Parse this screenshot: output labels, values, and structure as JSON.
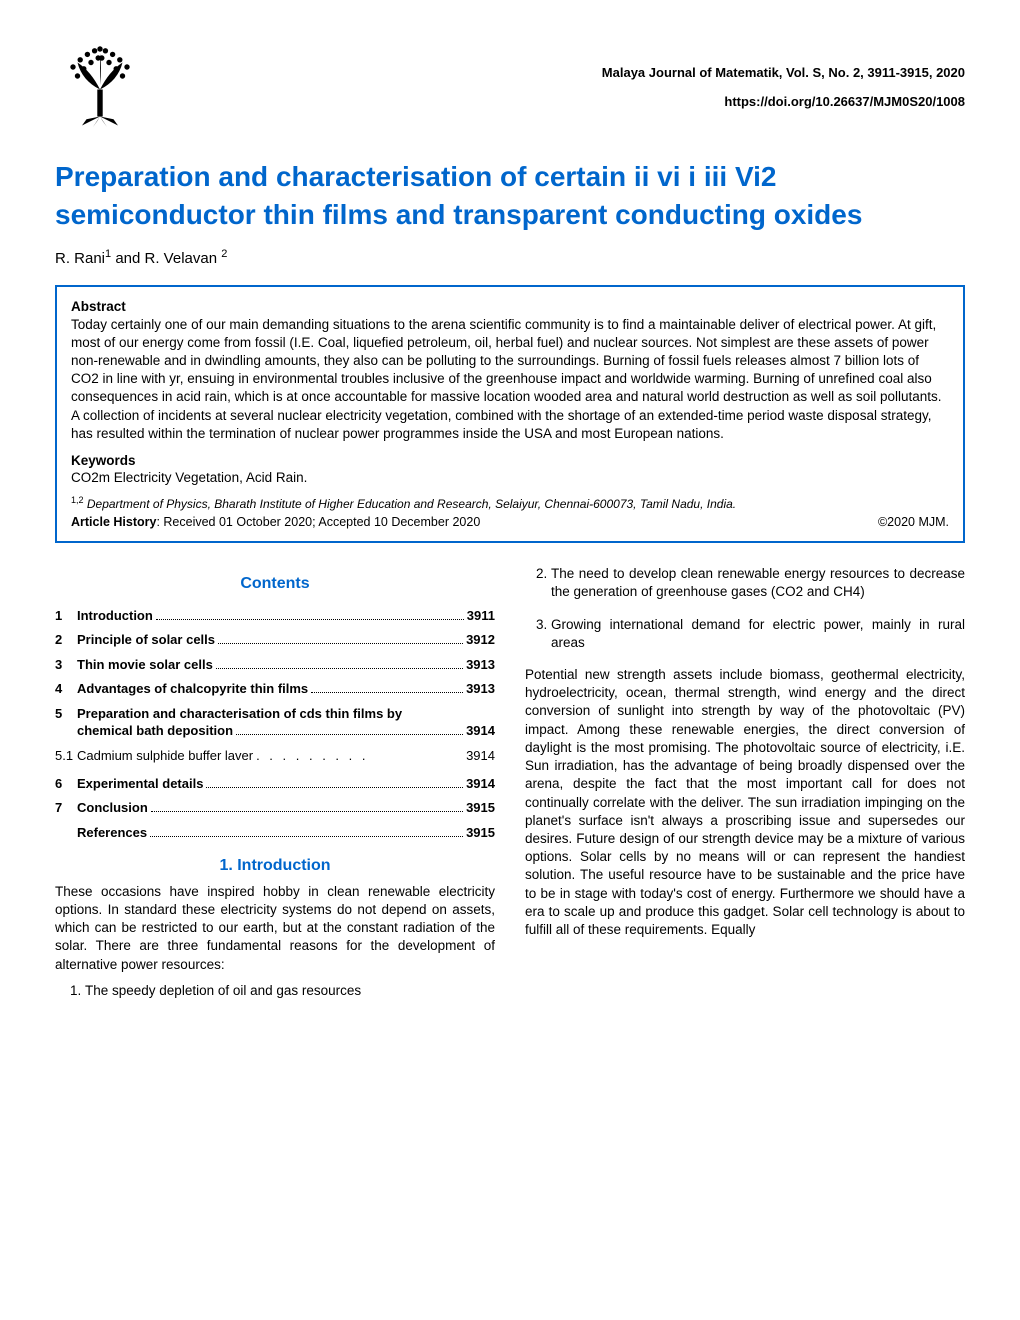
{
  "header": {
    "journal_line": "Malaya Journal of Matematik, Vol. S, No. 2, 3911-3915, 2020",
    "doi": "https://doi.org/10.26637/MJM0S20/1008"
  },
  "title": "Preparation and characterisation of certain ii vi i iii Vi2 semiconductor thin films and transparent conducting oxides",
  "authors_html": "R. Rani¹ and R. Velavan ²",
  "abstract": {
    "label": "Abstract",
    "text": "Today certainly one of our main demanding situations to the arena scientific community is to find a maintainable deliver of electrical power. At gift, most of our energy come from fossil (I.E. Coal, liquefied petroleum, oil, herbal fuel) and nuclear sources. Not simplest are these assets of power non-renewable and in dwindling amounts, they also can be polluting to the surroundings. Burning of fossil fuels releases almost 7 billion lots of CO2 in line with yr, ensuing in environmental troubles inclusive of the greenhouse impact and worldwide warming. Burning of unrefined coal also consequences in acid rain, which is at once accountable for massive location wooded area and natural world destruction as well as soil pollutants. A collection of incidents at several nuclear electricity vegetation, combined with the shortage of an extended-time period waste disposal strategy, has resulted within the termination of nuclear power programmes inside the USA and most European nations.",
    "keywords_label": "Keywords",
    "keywords": "CO2m Electricity Vegetation, Acid Rain.",
    "affiliation_prefix": "1,2",
    "affiliation": "Department of Physics, Bharath Institute of Higher Education and Research, Selaiyur, Chennai-600073, Tamil Nadu, India.",
    "history_left_label": "Article History",
    "history_left": ": Received 01 October 2020; Accepted 10 December 2020",
    "history_right": "©2020 MJM."
  },
  "contents_heading": "Contents",
  "toc": [
    {
      "num": "1",
      "label": "Introduction",
      "page": "3911",
      "bold": true,
      "dense": true
    },
    {
      "num": "2",
      "label": "Principle of solar cells",
      "page": "3912",
      "bold": true,
      "dense": true
    },
    {
      "num": "3",
      "label": "Thin movie solar cells",
      "page": "3913",
      "bold": true,
      "dense": true
    },
    {
      "num": "4",
      "label": "Advantages of chalcopyrite thin films",
      "page": "3913",
      "bold": true,
      "dense": true
    },
    {
      "num": "5",
      "label": "Preparation and characterisation of cds thin films by chemical bath deposition",
      "page": "3914",
      "bold": true,
      "dense": true,
      "twoline": true
    },
    {
      "num": "5.1",
      "label": "Cadmium sulphide buffer laver",
      "page": "3914",
      "bold": false,
      "dense": false
    },
    {
      "num": "6",
      "label": "Experimental details",
      "page": "3914",
      "bold": true,
      "dense": true
    },
    {
      "num": "7",
      "label": "Conclusion",
      "page": "3915",
      "bold": true,
      "dense": true
    },
    {
      "num": "",
      "label": "References",
      "page": "3915",
      "bold": true,
      "dense": true
    }
  ],
  "intro_heading": "1. Introduction",
  "intro_para": "These occasions have inspired hobby in clean renewable electricity options. In standard these electricity systems do not depend on assets, which can be restricted to our earth, but at the constant radiation of the solar. There are three fundamental reasons for the development of alternative power resources:",
  "left_list": {
    "item1": "The speedy depletion of oil and gas resources"
  },
  "right_list": {
    "item2": "The need to develop clean renewable energy resources to decrease the generation of greenhouse gases (CO2 and CH4)",
    "item3": "Growing international demand for electric power, mainly in rural areas"
  },
  "right_para": "Potential new strength assets include biomass, geothermal electricity, hydroelectricity, ocean, thermal strength, wind energy and the direct conversion of sunlight into strength by way of the photovoltaic (PV) impact. Among these renewable energies, the direct conversion of daylight is the most promising. The photovoltaic source of electricity, i.E. Sun irradiation, has the advantage of being broadly dispensed over the arena, despite the fact that the most important call for does not continually correlate with the deliver. The sun irradiation impinging on the planet's surface isn't always a proscribing issue and supersedes our desires. Future design of our strength device may be a mixture of various options. Solar cells by no means will or can represent the handiest solution. The useful resource have to be sustainable and the price have to be in stage with today's cost of energy. Furthermore we should have a era to scale up and produce this gadget. Solar cell technology is about to fulfill all of these requirements. Equally",
  "colors": {
    "primary": "#0066cc",
    "text": "#000000",
    "bg": "#ffffff"
  }
}
